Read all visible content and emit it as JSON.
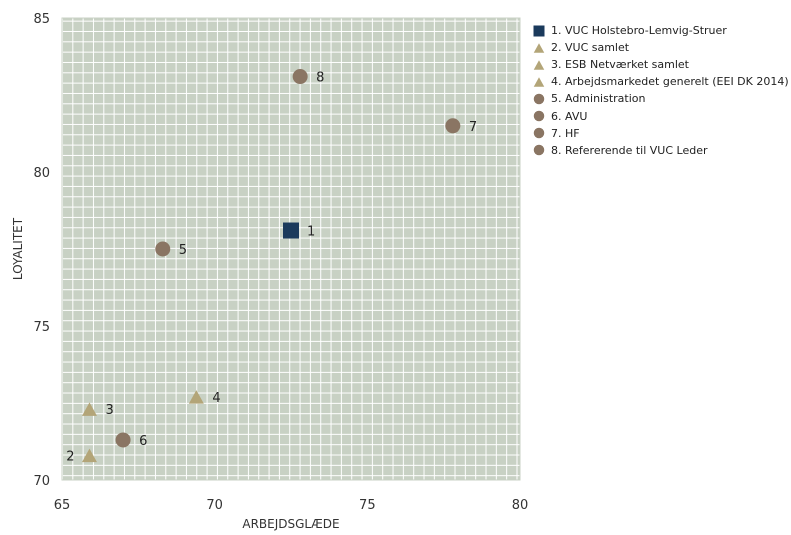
{
  "chart_data": {
    "type": "scatter",
    "xlabel": "ARBEJDSGLÆDE",
    "ylabel": "LOYALITET",
    "xlim": [
      65,
      80
    ],
    "ylim": [
      70,
      85
    ],
    "xticks": [
      "65",
      "70",
      "75",
      "80"
    ],
    "yticks": [
      "70",
      "75",
      "80",
      "85"
    ],
    "grid": true,
    "legend_position": "right",
    "colors": {
      "square": "#1b3a5c",
      "triangle": "#b3a578",
      "circle": "#8a7563",
      "plot_bg": "#c8d1c4",
      "grid": "#ffffff"
    },
    "points": [
      {
        "label": "1",
        "legend": "1. VUC Holstebro-Lemvig-Struer",
        "x": 72.5,
        "y": 78.1,
        "marker": "square",
        "label_side": "right"
      },
      {
        "label": "2",
        "legend": "2. VUC samlet",
        "x": 65.9,
        "y": 70.8,
        "marker": "triangle",
        "label_side": "left"
      },
      {
        "label": "3",
        "legend": "3. ESB Netværket samlet",
        "x": 65.9,
        "y": 72.3,
        "marker": "triangle",
        "label_side": "right"
      },
      {
        "label": "4",
        "legend": "4. Arbejdsmarkedet generelt (EEI DK 2014)",
        "x": 69.4,
        "y": 72.7,
        "marker": "triangle",
        "label_side": "right"
      },
      {
        "label": "5",
        "legend": "5. Administration",
        "x": 68.3,
        "y": 77.5,
        "marker": "circle",
        "label_side": "right"
      },
      {
        "label": "6",
        "legend": "6. AVU",
        "x": 67.0,
        "y": 71.3,
        "marker": "circle",
        "label_side": "right"
      },
      {
        "label": "7",
        "legend": "7. HF",
        "x": 77.8,
        "y": 81.5,
        "marker": "circle",
        "label_side": "right"
      },
      {
        "label": "8",
        "legend": "8. Refererende til VUC Leder",
        "x": 72.8,
        "y": 83.1,
        "marker": "circle",
        "label_side": "right"
      }
    ]
  }
}
